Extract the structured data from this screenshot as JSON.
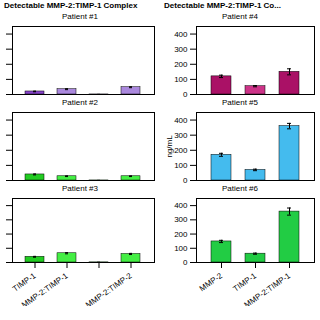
{
  "chart_data": [
    {
      "type": "bar",
      "title": "Patient #1",
      "annotations": [
        "Detectable MMP-2:TIMP-1 Complex"
      ],
      "categories": [
        null,
        null,
        null,
        null
      ],
      "values": [
        20,
        35,
        0.5,
        48
      ],
      "error": [
        2,
        3,
        0.2,
        3
      ],
      "colors": [
        "#8844CC",
        "#AA88DD",
        "#AA88DD",
        "#AA88DD"
      ],
      "ylim": [
        0,
        450
      ],
      "yticks": [
        0,
        100,
        200,
        300,
        400
      ],
      "tick_labels": false
    },
    {
      "type": "bar",
      "title": "Patient #4",
      "annotations": [
        "Detectable MMP-2:TIMP-1 Co..."
      ],
      "categories": [
        null,
        null,
        null
      ],
      "values": [
        120,
        55,
        150
      ],
      "error": [
        8,
        4,
        20
      ],
      "colors": [
        "#AA1166",
        "#CC3388",
        "#AA1166"
      ],
      "ylim": [
        0,
        450
      ],
      "yticks": [
        0,
        100,
        200,
        300,
        400
      ],
      "tick_labels": "y"
    },
    {
      "type": "bar",
      "title": "Patient #2",
      "categories": [
        null,
        null,
        null,
        null
      ],
      "values": [
        40,
        28,
        0.5,
        28
      ],
      "error": [
        3,
        2,
        0.2,
        2
      ],
      "colors": [
        "#22CC22",
        "#44EE44",
        "#44EE44",
        "#44EE44"
      ],
      "ylim": [
        0,
        450
      ],
      "yticks": [
        0,
        100,
        200,
        300,
        400
      ],
      "tick_labels": false
    },
    {
      "type": "bar",
      "title": "Patient #5",
      "ylabel": "ng/mL",
      "categories": [
        null,
        null,
        null
      ],
      "values": [
        170,
        70,
        360
      ],
      "error": [
        10,
        5,
        18
      ],
      "colors": [
        "#44BBEE",
        "#44BBEE",
        "#44BBEE"
      ],
      "ylim": [
        0,
        450
      ],
      "yticks": [
        0,
        100,
        200,
        300,
        400
      ],
      "tick_labels": "y"
    },
    {
      "type": "bar",
      "title": "Patient #3",
      "categories": [
        "TIMP-1",
        "MMP-2:TIMP-1",
        null,
        "MMP-2:TIMP-2"
      ],
      "values": [
        40,
        65,
        1,
        60
      ],
      "error": [
        3,
        4,
        0.3,
        4
      ],
      "colors": [
        "#22CC22",
        "#44EE44",
        "#44EE44",
        "#44EE44"
      ],
      "ylim": [
        0,
        450
      ],
      "yticks": [
        0,
        100,
        200,
        300,
        400
      ],
      "tick_labels": "x"
    },
    {
      "type": "bar",
      "title": "Patient #6",
      "categories": [
        "MMP-2",
        "TIMP-1",
        "MMP-2:TIMP-1"
      ],
      "values": [
        148,
        62,
        358
      ],
      "error": [
        8,
        4,
        25
      ],
      "colors": [
        "#22CC44",
        "#22CC44",
        "#22CC44"
      ],
      "ylim": [
        0,
        450
      ],
      "yticks": [
        0,
        100,
        200,
        300,
        400
      ]
    }
  ]
}
